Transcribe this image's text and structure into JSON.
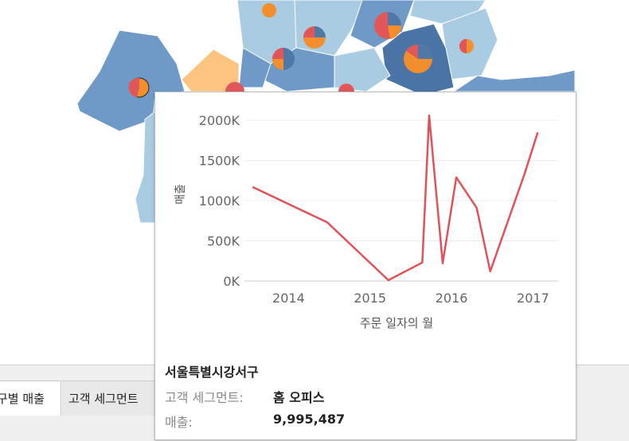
{
  "tabs": [
    {
      "label": "구별 매출"
    },
    {
      "label": "고객 세그먼트"
    }
  ],
  "colors": {
    "line": "#e0525a",
    "pie_red": "#e15759",
    "pie_orange": "#f28e2b",
    "pie_blue": "#4e79a7",
    "map_dark": "#4a74a6",
    "map_mid": "#6f9ac8",
    "map_light": "#a9cce3",
    "map_orange": "#fcc47e"
  },
  "tooltip": {
    "district": "서울특별시강서구",
    "segment_label": "고객 세그먼트:",
    "segment_value": "홈 오피스",
    "sales_label": "매출:",
    "sales_value": "9,995,487"
  },
  "chart_data": {
    "type": "line",
    "xlabel": "주문 일자의 월",
    "ylabel": "매출",
    "x_ticks": [
      "2014",
      "2015",
      "2016",
      "2017"
    ],
    "y_ticks": [
      "2000K",
      "1500K",
      "1000K",
      "500K",
      "0K"
    ],
    "ylim": [
      0,
      2100000
    ],
    "grid": true,
    "series": [
      {
        "points": [
          {
            "x": "2013-07",
            "y": 1170000
          },
          {
            "x": "2014-06",
            "y": 730000
          },
          {
            "x": "2015-03",
            "y": 10000
          },
          {
            "x": "2015-08",
            "y": 230000
          },
          {
            "x": "2015-09",
            "y": 2060000
          },
          {
            "x": "2015-11",
            "y": 220000
          },
          {
            "x": "2016-01",
            "y": 1290000
          },
          {
            "x": "2016-04",
            "y": 910000
          },
          {
            "x": "2016-06",
            "y": 120000
          },
          {
            "x": "2016-11",
            "y": 1320000
          },
          {
            "x": "2017-01",
            "y": 1850000
          }
        ]
      }
    ]
  }
}
